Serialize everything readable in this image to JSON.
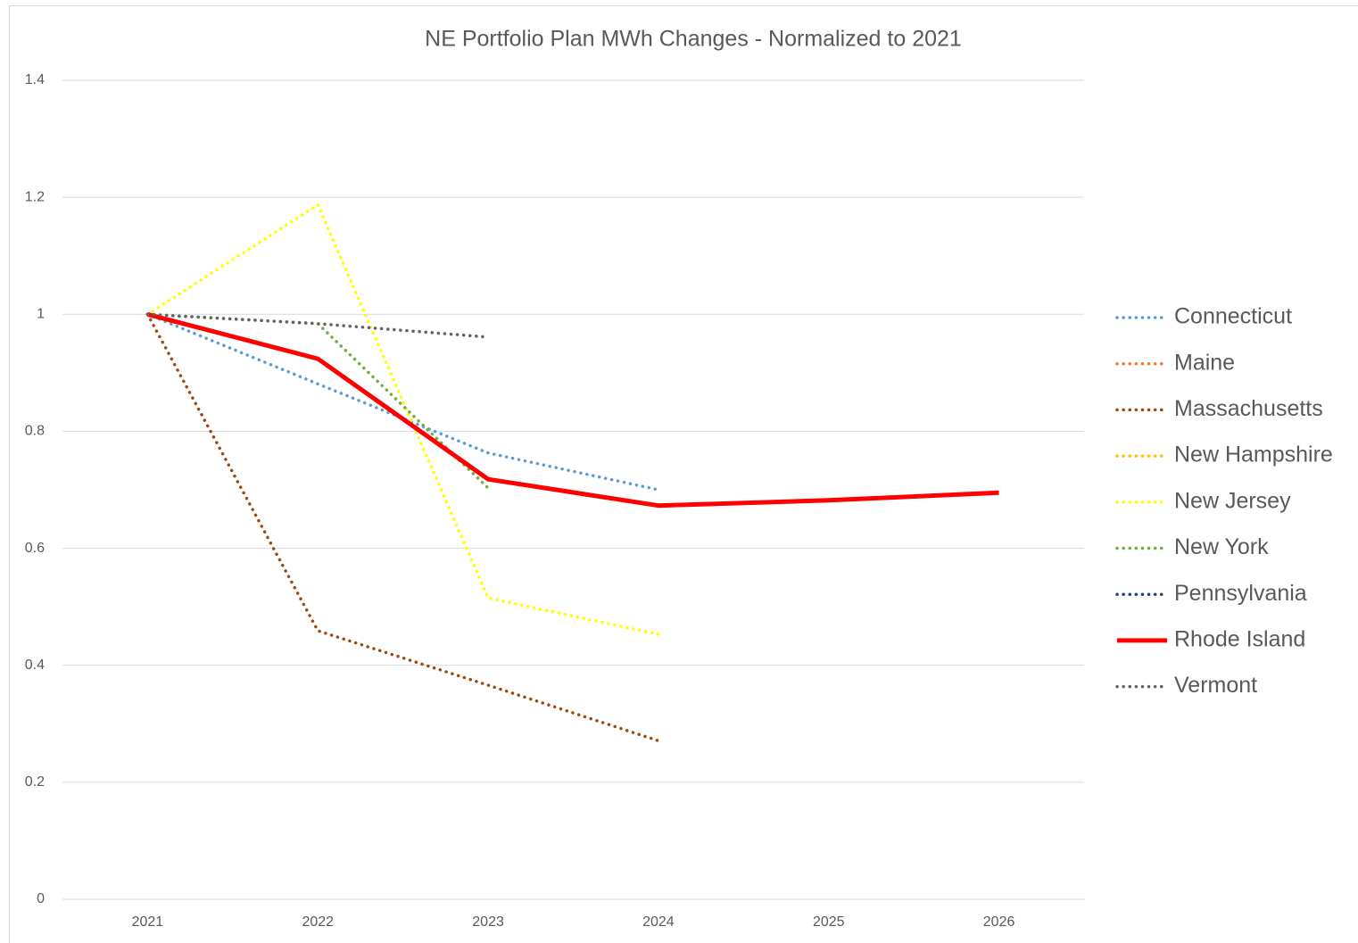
{
  "chart_data": {
    "type": "line",
    "title": "NE Portfolio Plan MWh Changes - Normalized to 2021",
    "categories": [
      "2021",
      "2022",
      "2023",
      "2024",
      "2025",
      "2026"
    ],
    "ylim": [
      0,
      1.4
    ],
    "yticks": [
      0,
      0.2,
      0.4,
      0.6,
      0.8,
      1,
      1.2,
      1.4
    ],
    "grid": true,
    "legend": "right",
    "series": [
      {
        "name": "Connecticut",
        "color": "#5b9bd5",
        "style": "dotted",
        "values": [
          1,
          0.881,
          0.763,
          0.7,
          null,
          null
        ]
      },
      {
        "name": "Maine",
        "color": "#ed7d31",
        "style": "dotted",
        "values": [
          null,
          null,
          null,
          null,
          null,
          null
        ]
      },
      {
        "name": "Massachusetts",
        "color": "#9e480e",
        "style": "dotted",
        "values": [
          1,
          0.459,
          0.366,
          0.271,
          null,
          null
        ]
      },
      {
        "name": "New Hampshire",
        "color": "#ffc000",
        "style": "dotted",
        "values": [
          null,
          null,
          null,
          null,
          null,
          null
        ]
      },
      {
        "name": "New Jersey",
        "color": "#ffff00",
        "style": "dotted",
        "values": [
          1,
          1.187,
          0.515,
          0.453,
          null,
          null
        ]
      },
      {
        "name": "New York",
        "color": "#70ad47",
        "style": "dotted",
        "values": [
          1,
          0.984,
          0.703,
          null,
          null,
          null
        ]
      },
      {
        "name": "Pennsylvania",
        "color": "#264478",
        "style": "dotted",
        "values": [
          null,
          null,
          null,
          null,
          null,
          null
        ]
      },
      {
        "name": "Rhode Island",
        "color": "#ff0000",
        "style": "solid",
        "values": [
          1,
          0.924,
          0.718,
          0.673,
          0.682,
          0.695
        ]
      },
      {
        "name": "Vermont",
        "color": "#636363",
        "style": "dotted",
        "values": [
          1,
          0.984,
          0.961,
          null,
          null,
          null
        ]
      }
    ]
  }
}
